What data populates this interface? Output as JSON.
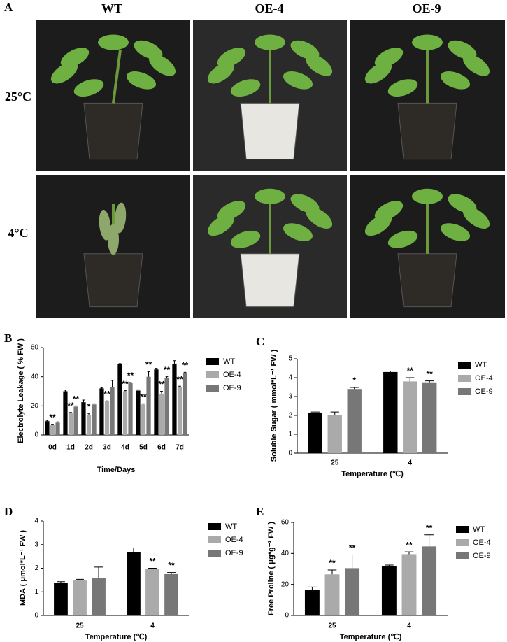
{
  "panel_a": {
    "label": "A",
    "columns": [
      "WT",
      "OE-4",
      "OE-9"
    ],
    "rows": [
      "25°C",
      "4°C"
    ]
  },
  "chart_data": [
    {
      "type": "bar",
      "panel_label": "B",
      "y_label": "Electrolyte Leakage ( % FW )",
      "x_label": "Time/Days",
      "categories": [
        "0d",
        "1d",
        "2d",
        "3d",
        "4d",
        "5d",
        "6d",
        "7d"
      ],
      "ylim": [
        0,
        60
      ],
      "yticks": [
        0,
        20,
        40,
        60
      ],
      "series": [
        {
          "name": "WT",
          "color": "#000000",
          "values": [
            9.5,
            30,
            22.5,
            32,
            48.5,
            30.5,
            45,
            49
          ],
          "errors": [
            0.5,
            0.8,
            1.5,
            0.5,
            0.5,
            0.5,
            0.8,
            2
          ],
          "stars": [
            null,
            null,
            null,
            null,
            null,
            null,
            null,
            null
          ]
        },
        {
          "name": "OE-4",
          "color": "#aaaaaa",
          "values": [
            7,
            15,
            14,
            23,
            30,
            21,
            28,
            33
          ],
          "errors": [
            0.4,
            0.5,
            0.8,
            0.4,
            0.4,
            0.4,
            2,
            0.5
          ],
          "stars": [
            "**",
            "**",
            "*",
            "**",
            "**",
            "**",
            "**",
            "**"
          ]
        },
        {
          "name": "OE-9",
          "color": "#777777",
          "values": [
            8.5,
            19.5,
            21,
            33,
            35.5,
            40,
            39,
            42.5
          ],
          "errors": [
            0.5,
            0.5,
            0.4,
            4.5,
            0.5,
            3.5,
            1,
            0.5
          ],
          "stars": [
            null,
            "**",
            null,
            null,
            "**",
            "**",
            "**",
            "**"
          ]
        }
      ]
    },
    {
      "type": "bar",
      "panel_label": "C",
      "y_label": "Soluble Sugar ( mmol*L⁻¹ FW )",
      "x_label": "Temperature (℃)",
      "categories": [
        "25",
        "4"
      ],
      "ylim": [
        0,
        5
      ],
      "yticks": [
        0,
        1,
        2,
        3,
        4,
        5
      ],
      "series": [
        {
          "name": "WT",
          "color": "#000000",
          "values": [
            2.15,
            4.3
          ],
          "errors": [
            0.03,
            0.05
          ],
          "stars": [
            null,
            null
          ]
        },
        {
          "name": "OE-4",
          "color": "#aaaaaa",
          "values": [
            2,
            3.8
          ],
          "errors": [
            0.18,
            0.2
          ],
          "stars": [
            null,
            "**"
          ]
        },
        {
          "name": "OE-9",
          "color": "#777777",
          "values": [
            3.4,
            3.75
          ],
          "errors": [
            0.08,
            0.08
          ],
          "stars": [
            "*",
            "**"
          ]
        }
      ]
    },
    {
      "type": "bar",
      "panel_label": "D",
      "y_label": "MDA ( μmol*L⁻¹ FW )",
      "x_label": "Temperature (℃)",
      "categories": [
        "25",
        "4"
      ],
      "ylim": [
        0,
        4
      ],
      "yticks": [
        0,
        1,
        2,
        3,
        4
      ],
      "series": [
        {
          "name": "WT",
          "color": "#000000",
          "values": [
            1.38,
            2.68
          ],
          "errors": [
            0.05,
            0.18
          ],
          "stars": [
            null,
            null
          ]
        },
        {
          "name": "OE-4",
          "color": "#aaaaaa",
          "values": [
            1.48,
            1.98
          ],
          "errors": [
            0.05,
            0.02
          ],
          "stars": [
            null,
            "**"
          ]
        },
        {
          "name": "OE-9",
          "color": "#777777",
          "values": [
            1.6,
            1.75
          ],
          "errors": [
            0.45,
            0.07
          ],
          "stars": [
            null,
            "**"
          ]
        }
      ]
    },
    {
      "type": "bar",
      "panel_label": "E",
      "y_label": "Free Proline ( μg*g⁻¹ FW )",
      "x_label": "Temperature (℃)",
      "categories": [
        "25",
        "4"
      ],
      "ylim": [
        0,
        60
      ],
      "yticks": [
        0,
        20,
        40,
        60
      ],
      "series": [
        {
          "name": "WT",
          "color": "#000000",
          "values": [
            16.5,
            32
          ],
          "errors": [
            1.8,
            0.5
          ],
          "stars": [
            null,
            null
          ]
        },
        {
          "name": "OE-4",
          "color": "#aaaaaa",
          "values": [
            26.5,
            39.5
          ],
          "errors": [
            2.8,
            1.5
          ],
          "stars": [
            "**",
            "**"
          ]
        },
        {
          "name": "OE-9",
          "color": "#777777",
          "values": [
            30.5,
            44.5
          ],
          "errors": [
            8.5,
            7.5
          ],
          "stars": [
            "**",
            "**"
          ]
        }
      ]
    }
  ]
}
